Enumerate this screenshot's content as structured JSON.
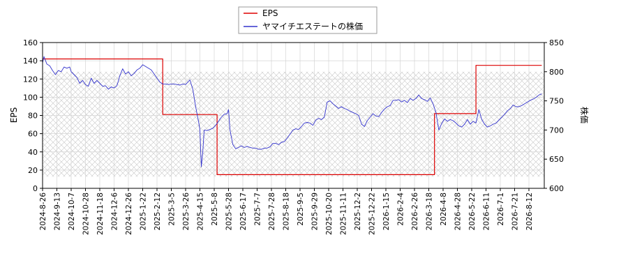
{
  "chart_data": {
    "type": "line",
    "legend": {
      "placement": "top-center",
      "entries": [
        "EPS",
        "ヤマイチエステートの株価"
      ]
    },
    "x_ticks": [
      "2024-8-26",
      "2024-9-13",
      "2024-10-7",
      "2024-10-28",
      "2024-11-18",
      "2024-12-6",
      "2024-12-26",
      "2025-1-22",
      "2025-2-12",
      "2025-3-5",
      "2025-3-26",
      "2025-4-15",
      "2025-5-8",
      "2025-5-28",
      "2025-6-17",
      "2025-7-7",
      "2025-7-28",
      "2025-8-18",
      "2025-9-5",
      "2025-9-29",
      "2025-10-20",
      "2025-11-11",
      "2025-12-2",
      "2025-12-22",
      "2026-1-15",
      "2026-2-4",
      "2026-2-26",
      "2026-3-18",
      "2026-4-8",
      "2026-4-28",
      "2026-5-22",
      "2026-6-11",
      "2026-7-1",
      "2026-7-21",
      "2026-8-12"
    ],
    "y_left": {
      "label": "EPS",
      "range": [
        0,
        160
      ],
      "ticks": [
        "0",
        "20",
        "40",
        "60",
        "80",
        "100",
        "120",
        "140",
        "160"
      ]
    },
    "y_right": {
      "label": "株価",
      "range": [
        600,
        850
      ],
      "ticks": [
        "600",
        "650",
        "700",
        "750",
        "800",
        "850"
      ]
    },
    "grid": true,
    "series": [
      {
        "name": "EPS",
        "axis": "left",
        "color": "#dd0000",
        "step": true,
        "points": [
          [
            0,
            142
          ],
          [
            8.4,
            142
          ],
          [
            8.4,
            81
          ],
          [
            12.2,
            81
          ],
          [
            12.2,
            15
          ],
          [
            27.4,
            15
          ],
          [
            27.4,
            82
          ],
          [
            30.3,
            82
          ],
          [
            30.3,
            135
          ],
          [
            34.9,
            135
          ]
        ]
      },
      {
        "name": "ヤマイチエステートの株価",
        "axis": "right",
        "color": "#3333cc",
        "step": false,
        "points": [
          [
            0,
            815
          ],
          [
            0.1,
            826
          ],
          [
            0.3,
            813
          ],
          [
            0.5,
            810
          ],
          [
            0.7,
            802
          ],
          [
            0.9,
            795
          ],
          [
            1.1,
            802
          ],
          [
            1.3,
            800
          ],
          [
            1.5,
            808
          ],
          [
            1.7,
            806
          ],
          [
            1.9,
            808
          ],
          [
            2.0,
            800
          ],
          [
            2.2,
            795
          ],
          [
            2.4,
            790
          ],
          [
            2.6,
            780
          ],
          [
            2.8,
            785
          ],
          [
            3.0,
            778
          ],
          [
            3.2,
            775
          ],
          [
            3.4,
            789
          ],
          [
            3.6,
            780
          ],
          [
            3.8,
            785
          ],
          [
            4.0,
            780
          ],
          [
            4.2,
            775
          ],
          [
            4.4,
            776
          ],
          [
            4.6,
            770
          ],
          [
            4.8,
            774
          ],
          [
            5.0,
            772
          ],
          [
            5.2,
            776
          ],
          [
            5.4,
            793
          ],
          [
            5.6,
            805
          ],
          [
            5.8,
            796
          ],
          [
            6.0,
            800
          ],
          [
            6.2,
            793
          ],
          [
            6.4,
            797
          ],
          [
            6.6,
            803
          ],
          [
            6.8,
            806
          ],
          [
            7.0,
            812
          ],
          [
            7.2,
            809
          ],
          [
            7.4,
            806
          ],
          [
            7.6,
            803
          ],
          [
            7.8,
            796
          ],
          [
            8.0,
            789
          ],
          [
            8.2,
            782
          ],
          [
            8.4,
            779
          ],
          [
            8.6,
            779
          ],
          [
            8.8,
            778
          ],
          [
            9.0,
            779
          ],
          [
            9.2,
            779
          ],
          [
            9.4,
            778
          ],
          [
            9.6,
            777
          ],
          [
            9.8,
            779
          ],
          [
            10.0,
            778
          ],
          [
            10.3,
            786
          ],
          [
            10.5,
            770
          ],
          [
            10.7,
            740
          ],
          [
            10.9,
            715
          ],
          [
            11.0,
            700
          ],
          [
            11.1,
            637
          ],
          [
            11.2,
            662
          ],
          [
            11.3,
            700
          ],
          [
            11.5,
            699
          ],
          [
            11.7,
            701
          ],
          [
            11.9,
            703
          ],
          [
            12.1,
            708
          ],
          [
            12.3,
            715
          ],
          [
            12.5,
            722
          ],
          [
            12.7,
            727
          ],
          [
            12.9,
            728
          ],
          [
            13.0,
            735
          ],
          [
            13.1,
            700
          ],
          [
            13.3,
            675
          ],
          [
            13.5,
            668
          ],
          [
            13.7,
            670
          ],
          [
            13.9,
            673
          ],
          [
            14.1,
            670
          ],
          [
            14.3,
            672
          ],
          [
            14.5,
            670
          ],
          [
            14.7,
            669
          ],
          [
            14.9,
            669
          ],
          [
            15.1,
            667
          ],
          [
            15.3,
            667
          ],
          [
            15.5,
            669
          ],
          [
            15.7,
            669
          ],
          [
            15.9,
            671
          ],
          [
            16.1,
            677
          ],
          [
            16.3,
            677
          ],
          [
            16.5,
            675
          ],
          [
            16.7,
            679
          ],
          [
            16.9,
            680
          ],
          [
            17.1,
            686
          ],
          [
            17.3,
            693
          ],
          [
            17.5,
            700
          ],
          [
            17.7,
            702
          ],
          [
            17.9,
            701
          ],
          [
            18.1,
            706
          ],
          [
            18.3,
            712
          ],
          [
            18.5,
            713
          ],
          [
            18.7,
            712
          ],
          [
            18.9,
            708
          ],
          [
            19.1,
            717
          ],
          [
            19.3,
            720
          ],
          [
            19.5,
            718
          ],
          [
            19.7,
            722
          ],
          [
            19.9,
            748
          ],
          [
            20.1,
            750
          ],
          [
            20.3,
            745
          ],
          [
            20.5,
            741
          ],
          [
            20.7,
            737
          ],
          [
            20.9,
            740
          ],
          [
            21.1,
            737
          ],
          [
            21.3,
            735
          ],
          [
            21.5,
            732
          ],
          [
            21.7,
            730
          ],
          [
            21.9,
            728
          ],
          [
            22.1,
            725
          ],
          [
            22.3,
            710
          ],
          [
            22.5,
            706
          ],
          [
            22.7,
            716
          ],
          [
            22.9,
            722
          ],
          [
            23.1,
            728
          ],
          [
            23.3,
            724
          ],
          [
            23.5,
            723
          ],
          [
            23.7,
            730
          ],
          [
            23.9,
            736
          ],
          [
            24.1,
            740
          ],
          [
            24.3,
            742
          ],
          [
            24.5,
            751
          ],
          [
            24.7,
            751
          ],
          [
            24.9,
            752
          ],
          [
            25.1,
            748
          ],
          [
            25.3,
            751
          ],
          [
            25.5,
            747
          ],
          [
            25.7,
            754
          ],
          [
            25.9,
            751
          ],
          [
            26.1,
            754
          ],
          [
            26.3,
            760
          ],
          [
            26.5,
            754
          ],
          [
            26.7,
            752
          ],
          [
            26.9,
            749
          ],
          [
            27.1,
            755
          ],
          [
            27.3,
            745
          ],
          [
            27.5,
            730
          ],
          [
            27.7,
            700
          ],
          [
            27.9,
            711
          ],
          [
            28.1,
            719
          ],
          [
            28.3,
            715
          ],
          [
            28.5,
            718
          ],
          [
            28.7,
            716
          ],
          [
            28.9,
            712
          ],
          [
            29.1,
            707
          ],
          [
            29.3,
            705
          ],
          [
            29.5,
            710
          ],
          [
            29.7,
            718
          ],
          [
            29.9,
            710
          ],
          [
            30.1,
            715
          ],
          [
            30.3,
            712
          ],
          [
            30.5,
            735
          ],
          [
            30.7,
            718
          ],
          [
            30.9,
            710
          ],
          [
            31.1,
            705
          ],
          [
            31.3,
            707
          ],
          [
            31.5,
            710
          ],
          [
            31.7,
            712
          ],
          [
            31.9,
            717
          ],
          [
            32.1,
            722
          ],
          [
            32.3,
            727
          ],
          [
            32.5,
            733
          ],
          [
            32.7,
            737
          ],
          [
            32.9,
            743
          ],
          [
            33.1,
            740
          ],
          [
            33.3,
            740
          ],
          [
            33.5,
            742
          ],
          [
            33.7,
            745
          ],
          [
            33.9,
            748
          ],
          [
            34.1,
            751
          ],
          [
            34.3,
            753
          ],
          [
            34.5,
            756
          ],
          [
            34.7,
            760
          ],
          [
            34.9,
            762
          ]
        ]
      }
    ]
  }
}
